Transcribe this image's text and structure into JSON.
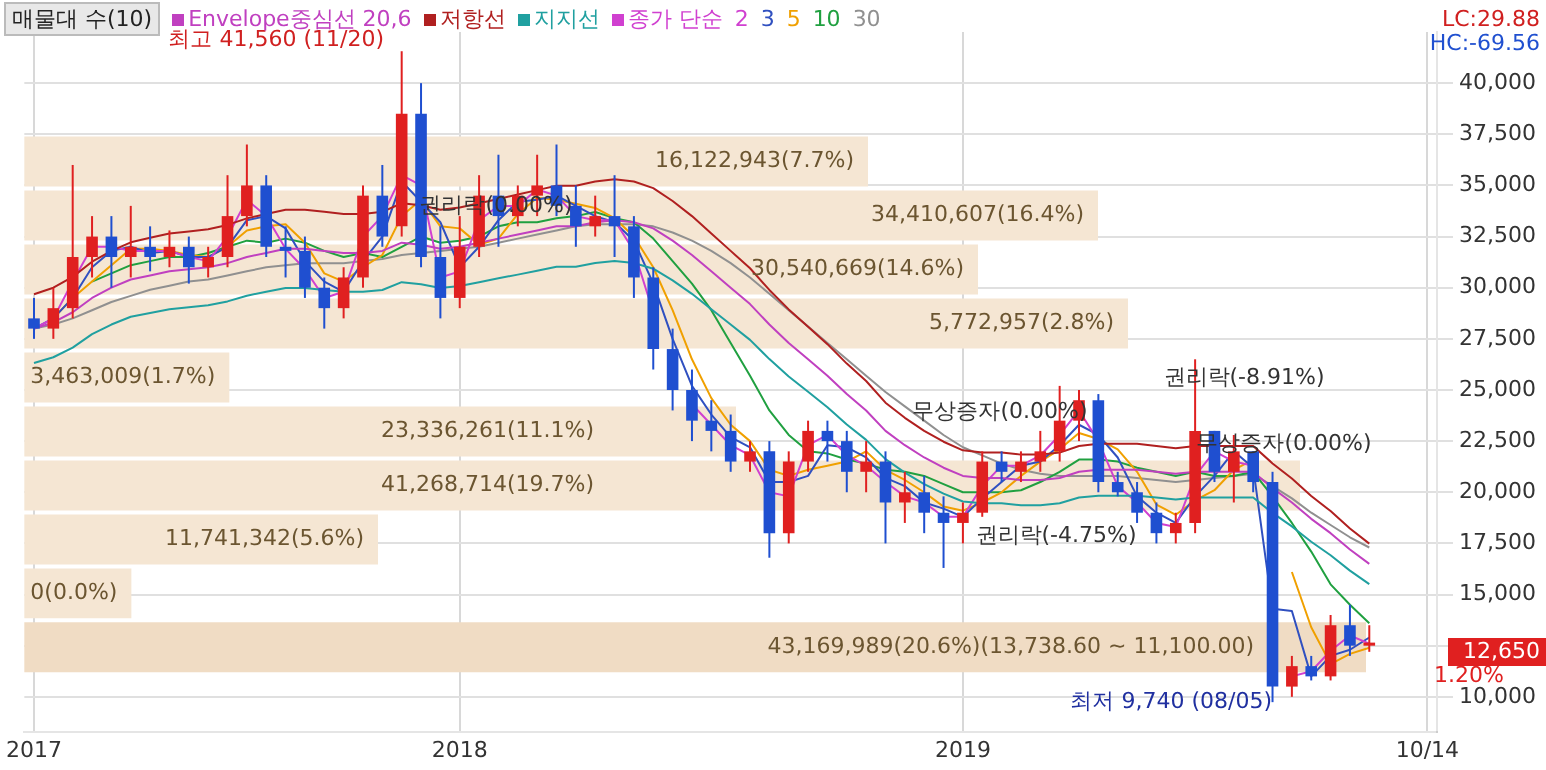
{
  "chart_data": {
    "type": "candlestick",
    "title": "매물대 수(10)",
    "legend_title": "종가 단순",
    "categories": [
      "2017",
      null,
      null,
      null,
      null,
      null,
      null,
      null,
      null,
      null,
      null,
      null,
      null,
      null,
      null,
      null,
      null,
      null,
      null,
      null,
      null,
      null,
      "2018",
      null,
      null,
      null,
      null,
      null,
      null,
      null,
      null,
      null,
      null,
      null,
      null,
      null,
      null,
      null,
      null,
      null,
      null,
      null,
      null,
      null,
      null,
      null,
      null,
      null,
      "2019",
      null,
      null,
      null,
      null,
      null,
      null,
      null,
      null,
      null,
      null,
      null,
      null,
      null,
      null,
      null,
      null,
      null,
      null,
      null,
      null,
      null,
      null,
      null,
      "10/14"
    ],
    "ohlc": [
      [
        28500,
        29500,
        27500,
        28000
      ],
      [
        28000,
        30000,
        27500,
        29000
      ],
      [
        29000,
        36000,
        28500,
        31500
      ],
      [
        31500,
        33500,
        30500,
        32500
      ],
      [
        32500,
        33500,
        30000,
        31500
      ],
      [
        31500,
        34000,
        30500,
        32000
      ],
      [
        32000,
        33000,
        30800,
        31500
      ],
      [
        31500,
        32800,
        31000,
        32000
      ],
      [
        32000,
        32500,
        30200,
        31000
      ],
      [
        31000,
        32000,
        30500,
        31500
      ],
      [
        31500,
        35500,
        31000,
        33500
      ],
      [
        33500,
        37000,
        33000,
        35000
      ],
      [
        35000,
        35500,
        31500,
        32000
      ],
      [
        32000,
        33000,
        30500,
        31800
      ],
      [
        31800,
        32500,
        29500,
        30000
      ],
      [
        30000,
        30500,
        28000,
        29000
      ],
      [
        29000,
        31000,
        28500,
        30500
      ],
      [
        30500,
        35000,
        30000,
        34500
      ],
      [
        34500,
        36000,
        32000,
        32500
      ],
      [
        33000,
        41560,
        32500,
        38500
      ],
      [
        38500,
        40000,
        31000,
        31500
      ],
      [
        31500,
        33000,
        28500,
        29500
      ],
      [
        29500,
        33500,
        29000,
        32000
      ],
      [
        32000,
        35500,
        31500,
        34500
      ],
      [
        34500,
        36500,
        32000,
        33500
      ],
      [
        33500,
        35000,
        33000,
        34500
      ],
      [
        34500,
        36500,
        33500,
        35000
      ],
      [
        35000,
        37000,
        33500,
        34000
      ],
      [
        34000,
        35000,
        32000,
        33000
      ],
      [
        33000,
        34500,
        32500,
        33500
      ],
      [
        33500,
        35500,
        31500,
        33000
      ],
      [
        33000,
        33500,
        29500,
        30500
      ],
      [
        30500,
        31000,
        26000,
        27000
      ],
      [
        27000,
        28000,
        24000,
        25000
      ],
      [
        25000,
        26000,
        22500,
        23500
      ],
      [
        23500,
        24500,
        22000,
        23000
      ],
      [
        23000,
        23800,
        21000,
        21500
      ],
      [
        21500,
        22500,
        21000,
        22000
      ],
      [
        22000,
        22500,
        16800,
        18000
      ],
      [
        18000,
        22000,
        17500,
        21500
      ],
      [
        21500,
        23500,
        21000,
        23000
      ],
      [
        23000,
        23500,
        21500,
        22500
      ],
      [
        22500,
        23000,
        20000,
        21000
      ],
      [
        21000,
        22500,
        20000,
        21500
      ],
      [
        21500,
        22000,
        17500,
        19500
      ],
      [
        19500,
        21000,
        18500,
        20000
      ],
      [
        20000,
        20800,
        18000,
        19000
      ],
      [
        19000,
        19800,
        16300,
        18500
      ],
      [
        18500,
        19500,
        17500,
        19000
      ],
      [
        19000,
        22000,
        18800,
        21500
      ],
      [
        21500,
        22000,
        20500,
        21000
      ],
      [
        21000,
        22000,
        20500,
        21500
      ],
      [
        21500,
        23000,
        21000,
        22000
      ],
      [
        22000,
        25200,
        21500,
        23500
      ],
      [
        23500,
        25000,
        22500,
        24500
      ],
      [
        24500,
        24800,
        20000,
        20500
      ],
      [
        20500,
        21000,
        19800,
        20000
      ],
      [
        20000,
        20500,
        18500,
        19000
      ],
      [
        19000,
        19500,
        17500,
        18000
      ],
      [
        18000,
        19000,
        17500,
        18500
      ],
      [
        18500,
        26500,
        18000,
        23000
      ],
      [
        23000,
        23000,
        20500,
        21000
      ],
      [
        21000,
        22800,
        19500,
        22000
      ],
      [
        22000,
        22000,
        20000,
        20500
      ],
      [
        20500,
        21000,
        9740,
        10500
      ],
      [
        10500,
        12000,
        10000,
        11500
      ],
      [
        11500,
        12000,
        10800,
        11000
      ],
      [
        11000,
        14000,
        10800,
        13500
      ],
      [
        13500,
        14500,
        12000,
        12500
      ],
      [
        12500,
        13500,
        12200,
        12650
      ],
      null,
      null,
      null
    ],
    "series": [
      {
        "name": "Envelope중심선 20,6",
        "type": "line",
        "color": "#c040c0",
        "values": [
          28000,
          28300,
          28800,
          29500,
          30000,
          30400,
          30600,
          30800,
          30900,
          31000,
          31200,
          31500,
          31700,
          31900,
          31900,
          31800,
          31700,
          31700,
          31800,
          32200,
          32100,
          31900,
          32000,
          32200,
          32400,
          32600,
          32800,
          33000,
          33000,
          33200,
          33300,
          33200,
          32900,
          32300,
          31600,
          30800,
          30000,
          29200,
          28200,
          27300,
          26500,
          25700,
          24800,
          24000,
          23000,
          22300,
          21700,
          21200,
          20800,
          20700,
          20700,
          20600,
          20600,
          20700,
          21000,
          21100,
          21100,
          21100,
          21000,
          20900,
          21000,
          21000,
          21000,
          21000,
          20200,
          19500,
          18700,
          18000,
          17200,
          16500,
          null,
          null,
          null
        ]
      },
      {
        "name": "저항선",
        "type": "line",
        "color": "#b02020",
        "values": [
          29680,
          30000,
          30530,
          31270,
          31800,
          32220,
          32440,
          32650,
          32750,
          32860,
          33070,
          33390,
          33600,
          33810,
          33810,
          33710,
          33600,
          33600,
          33710,
          34130,
          34030,
          33810,
          33920,
          34130,
          34340,
          34560,
          34770,
          34980,
          34980,
          35190,
          35300,
          35190,
          34870,
          34240,
          33500,
          32650,
          31800,
          30950,
          29890,
          28940,
          28090,
          27240,
          26290,
          25440,
          24380,
          23640,
          23000,
          22470,
          22050,
          21940,
          21940,
          21840,
          21840,
          21940,
          22260,
          22370,
          22370,
          22370,
          22260,
          22150,
          22260,
          22260,
          22260,
          22260,
          21410,
          20670,
          19820,
          19080,
          18230,
          17490,
          null,
          null,
          null
        ]
      },
      {
        "name": "지지선",
        "type": "line",
        "color": "#20a0a0",
        "values": [
          26320,
          26600,
          27070,
          27730,
          28200,
          28580,
          28760,
          28950,
          29050,
          29140,
          29330,
          29610,
          29800,
          29990,
          29990,
          29890,
          29800,
          29800,
          29890,
          30270,
          30170,
          29990,
          30080,
          30270,
          30460,
          30640,
          30830,
          31020,
          31020,
          31210,
          31300,
          31210,
          30930,
          30360,
          29700,
          28950,
          28200,
          27450,
          26510,
          25660,
          24910,
          24160,
          23310,
          22560,
          21620,
          20960,
          20400,
          19930,
          19550,
          19460,
          19460,
          19360,
          19360,
          19460,
          19740,
          19830,
          19830,
          19830,
          19740,
          19650,
          19740,
          19740,
          19740,
          19740,
          18990,
          18330,
          17580,
          16920,
          16170,
          15510,
          null,
          null,
          null
        ]
      },
      {
        "name": "2",
        "type": "line",
        "color": "#d040d0",
        "values": [
          28000,
          28500,
          30300,
          32000,
          32000,
          31800,
          31800,
          31800,
          31500,
          31300,
          32500,
          34300,
          33500,
          31900,
          30900,
          29500,
          29800,
          32500,
          33500,
          35500,
          35000,
          30500,
          30800,
          33300,
          34000,
          34000,
          34800,
          34500,
          33500,
          33300,
          33300,
          31800,
          28800,
          null,
          24300,
          23300,
          22300,
          21800,
          20000,
          19800,
          22300,
          22800,
          21800,
          21300,
          20500,
          19800,
          19500,
          18800,
          18800,
          20300,
          21300,
          21300,
          21800,
          22800,
          24000,
          22500,
          20300,
          19500,
          18500,
          18300,
          20800,
          22000,
          21500,
          21300,
          null,
          11000,
          11250,
          12250,
          13000,
          12600,
          null,
          null,
          null
        ]
      },
      {
        "name": "3",
        "type": "line",
        "color": "#3050c0",
        "values": [
          28000,
          28500,
          29500,
          31000,
          31800,
          32000,
          31700,
          31800,
          31500,
          31500,
          32000,
          33300,
          33500,
          32900,
          31300,
          30300,
          29800,
          31300,
          32500,
          35200,
          34200,
          33200,
          31000,
          32000,
          33300,
          34200,
          34300,
          34500,
          34000,
          33500,
          33200,
          32300,
          30200,
          27500,
          25200,
          23800,
          22700,
          22200,
          20500,
          20500,
          20800,
          22300,
          22200,
          21700,
          20700,
          20300,
          19500,
          19200,
          18800,
          19700,
          20500,
          21300,
          21500,
          22300,
          23300,
          22800,
          21700,
          19800,
          19000,
          18500,
          19800,
          20800,
          22000,
          21200,
          14300,
          14200,
          11000,
          12000,
          12300,
          12900,
          null,
          null,
          null
        ]
      },
      {
        "name": "5",
        "type": "line",
        "color": "#f0a000",
        "values": [
          null,
          28500,
          29500,
          30300,
          31100,
          31900,
          31900,
          31800,
          31600,
          31500,
          32000,
          32800,
          33000,
          33100,
          32200,
          30700,
          30300,
          31000,
          31600,
          33500,
          34300,
          33000,
          32900,
          32100,
          32400,
          33600,
          34400,
          34300,
          34100,
          33900,
          33400,
          32500,
          31000,
          28900,
          26500,
          24600,
          23300,
          22500,
          21100,
          20800,
          21100,
          21300,
          21500,
          22000,
          21100,
          20600,
          20000,
          19300,
          19100,
          19500,
          20000,
          20800,
          21500,
          22100,
          22900,
          22600,
          22100,
          21000,
          19400,
          18900,
          19600,
          20100,
          21100,
          21600,
          null,
          16100,
          13400,
          11600,
          12100,
          12400,
          null,
          null,
          null
        ]
      },
      {
        "name": "10",
        "type": "line",
        "color": "#20a040",
        "values": [
          null,
          null,
          null,
          30300,
          30700,
          31100,
          31300,
          31500,
          31500,
          31700,
          32000,
          32300,
          32200,
          32400,
          32200,
          31800,
          31500,
          31700,
          31500,
          32000,
          32500,
          32200,
          32300,
          32500,
          33000,
          33200,
          33200,
          33400,
          33500,
          33700,
          33400,
          33200,
          32400,
          31300,
          30200,
          28900,
          27300,
          25700,
          24000,
          22800,
          22000,
          21900,
          21600,
          21400,
          21100,
          21000,
          20800,
          20400,
          20000,
          20000,
          20000,
          20100,
          20500,
          21000,
          21600,
          21600,
          21500,
          21200,
          21000,
          20800,
          21000,
          20800,
          20800,
          21000,
          19800,
          18500,
          17100,
          15500,
          14500,
          13600,
          null,
          null,
          null
        ]
      },
      {
        "name": "30",
        "type": "line",
        "color": "#909090",
        "values": [
          28000,
          28200,
          28500,
          28900,
          29300,
          29600,
          29900,
          30100,
          30300,
          30400,
          30600,
          30800,
          31000,
          31100,
          31200,
          31200,
          31200,
          31300,
          31400,
          31600,
          31700,
          31800,
          31900,
          32000,
          32200,
          32400,
          32600,
          32800,
          33000,
          33100,
          33100,
          33100,
          33000,
          32700,
          32300,
          31800,
          31200,
          30500,
          29700,
          28900,
          28100,
          27300,
          26500,
          25700,
          24900,
          24200,
          23500,
          22800,
          22200,
          21800,
          21400,
          21100,
          20900,
          20800,
          20800,
          20800,
          20800,
          20700,
          20600,
          20500,
          20600,
          20700,
          20800,
          20900,
          20300,
          19700,
          19000,
          18400,
          17800,
          17300,
          null,
          null,
          null
        ]
      }
    ],
    "ylim": [
      8300,
      42500
    ],
    "yticks": [
      {
        "value": 10000,
        "label": "10,000"
      },
      {
        "value": 12500,
        "label": null
      },
      {
        "value": 15000,
        "label": "15,000"
      },
      {
        "value": 17500,
        "label": "17,500"
      },
      {
        "value": 20000,
        "label": "20,000"
      },
      {
        "value": 22500,
        "label": "22,500"
      },
      {
        "value": 25000,
        "label": "25,000"
      },
      {
        "value": 27500,
        "label": "27,500"
      },
      {
        "value": 30000,
        "label": "30,000"
      },
      {
        "value": 32500,
        "label": "32,500"
      },
      {
        "value": 35000,
        "label": "35,000"
      },
      {
        "value": 37500,
        "label": "37,500"
      },
      {
        "value": 40000,
        "label": "40,000"
      }
    ],
    "bands": [
      {
        "axis": "y",
        "from": 34847,
        "to": 37486,
        "label": "16,122,943(7.7%)",
        "color": "#f5e6d3"
      },
      {
        "axis": "y",
        "from": 32209,
        "to": 34847,
        "label": "34,410,607(16.4%)",
        "color": "#f5e6d3"
      },
      {
        "axis": "y",
        "from": 29570,
        "to": 32209,
        "label": "30,540,669(14.6%)",
        "color": "#f5e6d3"
      },
      {
        "axis": "y",
        "from": 26932,
        "to": 29570,
        "label": "5,772,957(2.8%)",
        "color": "#f5e6d3"
      },
      {
        "axis": "y",
        "from": 24293,
        "to": 26932,
        "label": "3,463,009(1.7%)",
        "color": "#f5e6d3"
      },
      {
        "axis": "y",
        "from": 21654,
        "to": 24293,
        "label": "23,336,261(11.1%)",
        "color": "#f5e6d3"
      },
      {
        "axis": "y",
        "from": 19016,
        "to": 21654,
        "label": "41,268,714(19.7%)",
        "color": "#f5e6d3"
      },
      {
        "axis": "y",
        "from": 16377,
        "to": 19016,
        "label": "11,741,342(5.6%)",
        "color": "#f5e6d3"
      },
      {
        "axis": "y",
        "from": 13739,
        "to": 16377,
        "label": "0(0.0%)",
        "color": "#f5e6d3"
      },
      {
        "axis": "y",
        "from": 11100,
        "to": 13739,
        "label": "43,169,989(20.6%)(13,738.60 ~ 11,100.00)",
        "color": "#f0dcc4"
      }
    ],
    "annotations": [
      "최고 41,560 (11/20)",
      "최저 9,740 (08/05)",
      "권리락(0.00%)",
      "권리락(-4.75%)",
      "무상증자(0.00%)",
      "권리락(-8.91%)",
      "무상증자(0.00%)",
      "LC:29.88",
      "HC:-69.56",
      "12,650",
      "1.20%"
    ],
    "grid": true,
    "legend": "top left"
  }
}
